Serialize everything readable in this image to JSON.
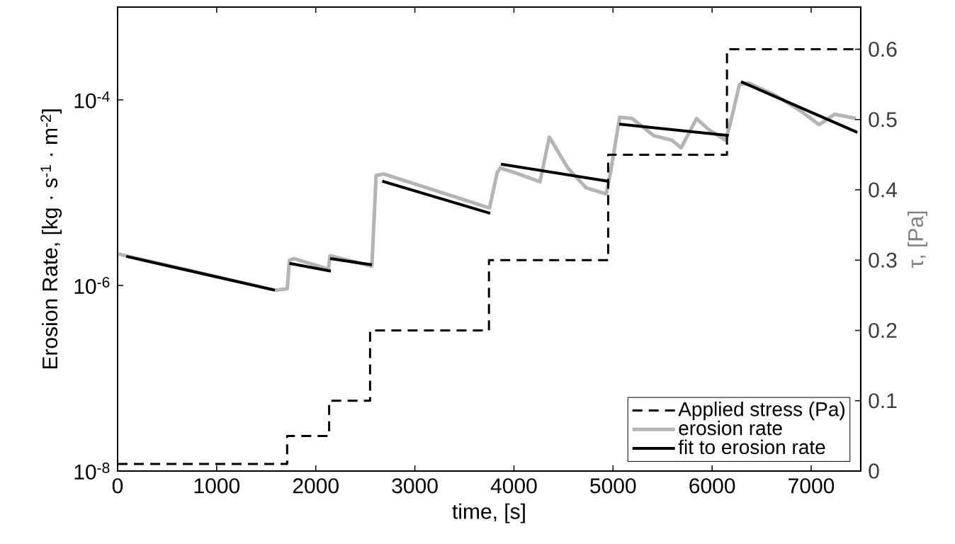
{
  "chart_data": {
    "type": "line",
    "xlabel": "time, [s]",
    "ylabel": "Erosion Rate, [kg · s$^{-1}$ · m$^{-2}$]",
    "y2label": "τ, [Pa]",
    "xlim": [
      0,
      7500
    ],
    "ylim": [
      1e-08,
      0.001
    ],
    "y2lim": [
      0,
      0.66
    ],
    "log": "y",
    "xticks": [
      0,
      1000,
      2000,
      3000,
      4000,
      5000,
      6000,
      7000
    ],
    "yticks": [
      {
        "value": 1e-08,
        "label": "10$^{-8}$"
      },
      {
        "value": 1e-06,
        "label": "10$^{-6}$"
      },
      {
        "value": 0.0001,
        "label": "10$^{-4}$"
      }
    ],
    "y2ticks": [
      0,
      0.1,
      0.2,
      0.3,
      0.4,
      0.5,
      0.6
    ],
    "legend": "bottom right",
    "series": [
      {
        "name": "Applied stress (Pa)",
        "type": "step",
        "axis": "y2",
        "line_style": "dashed",
        "color": "#000000",
        "x": [
          0,
          1711,
          2135,
          2548,
          3748,
          4951,
          6150,
          7500
        ],
        "values": [
          0.01,
          0.05,
          0.1,
          0.2,
          0.3,
          0.45,
          0.6,
          0.6
        ]
      },
      {
        "name": "erosion rate",
        "color": "#b4b4b4",
        "x": [
          10,
          1587,
          1712,
          1734,
          1780,
          2128,
          2145,
          2566,
          2609,
          2687,
          3754,
          3831,
          3862,
          4048,
          4263,
          4357,
          4543,
          4728,
          4930,
          4975,
          5067,
          5193,
          5409,
          5594,
          5687,
          5843,
          5965,
          6135,
          6184,
          6276,
          6370,
          6646,
          6894,
          7080,
          7236,
          7452
        ],
        "values": [
          2.18e-06,
          8.9e-07,
          9.2e-07,
          1.87e-06,
          1.95e-06,
          1.5e-06,
          2.1e-06,
          1.61e-06,
          1.53e-05,
          1.59e-05,
          6.85e-06,
          1.65e-05,
          1.85e-05,
          1.59e-05,
          1.31e-05,
          3.97e-05,
          1.85e-05,
          1.13e-05,
          9.7e-06,
          1.65e-05,
          6.5e-05,
          6.3e-05,
          4.13e-05,
          3.68e-05,
          3.04e-05,
          6.3e-05,
          4.8e-05,
          3.68e-05,
          5.6e-05,
          0.000146,
          0.000152,
          0.000111,
          7.6e-05,
          5.4e-05,
          7e-05,
          6.3e-05
        ]
      },
      {
        "name": "fit to erosion rate",
        "color": "#000000",
        "x": [
          87,
          1587,
          1600,
          1734,
          2152,
          2148,
          2145,
          2566,
          2600,
          2671,
          3760,
          3800,
          3869,
          4946,
          5000,
          5063,
          6168,
          6200,
          6292,
          7466
        ],
        "values": [
          2.06e-06,
          8.9e-07,
          null,
          1.73e-06,
          1.43e-06,
          null,
          1.95e-06,
          1.67e-06,
          null,
          1.33e-05,
          6e-06,
          null,
          2.03e-05,
          1.33e-05,
          null,
          5.48e-05,
          4.13e-05,
          null,
          0.000157,
          4.46e-05
        ]
      }
    ]
  }
}
